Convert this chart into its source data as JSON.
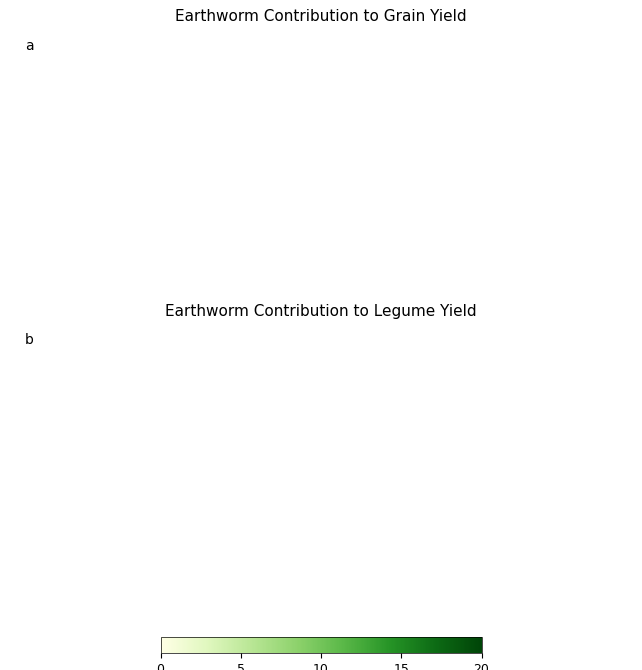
{
  "title_a": "Earthworm Contribution to Grain Yield",
  "title_b": "Earthworm Contribution to Legume Yield",
  "label_a": "a",
  "label_b": "b",
  "colorbar_label": "%",
  "colorbar_ticks": [
    0,
    5,
    10,
    15,
    20
  ],
  "vmin": 0,
  "vmax": 20,
  "background_color": "#ffffff",
  "ocean_color": "#ffffff",
  "land_no_data_color": "#c8c8c8",
  "cmap_colors": [
    "#ffffcc",
    "#e8f5c8",
    "#c8e8a0",
    "#a0d878",
    "#70c050",
    "#40a030",
    "#207818",
    "#005000"
  ],
  "figsize": [
    6.42,
    6.7
  ],
  "dpi": 100,
  "title_fontsize": 11,
  "label_fontsize": 10,
  "colorbar_fontsize": 9
}
